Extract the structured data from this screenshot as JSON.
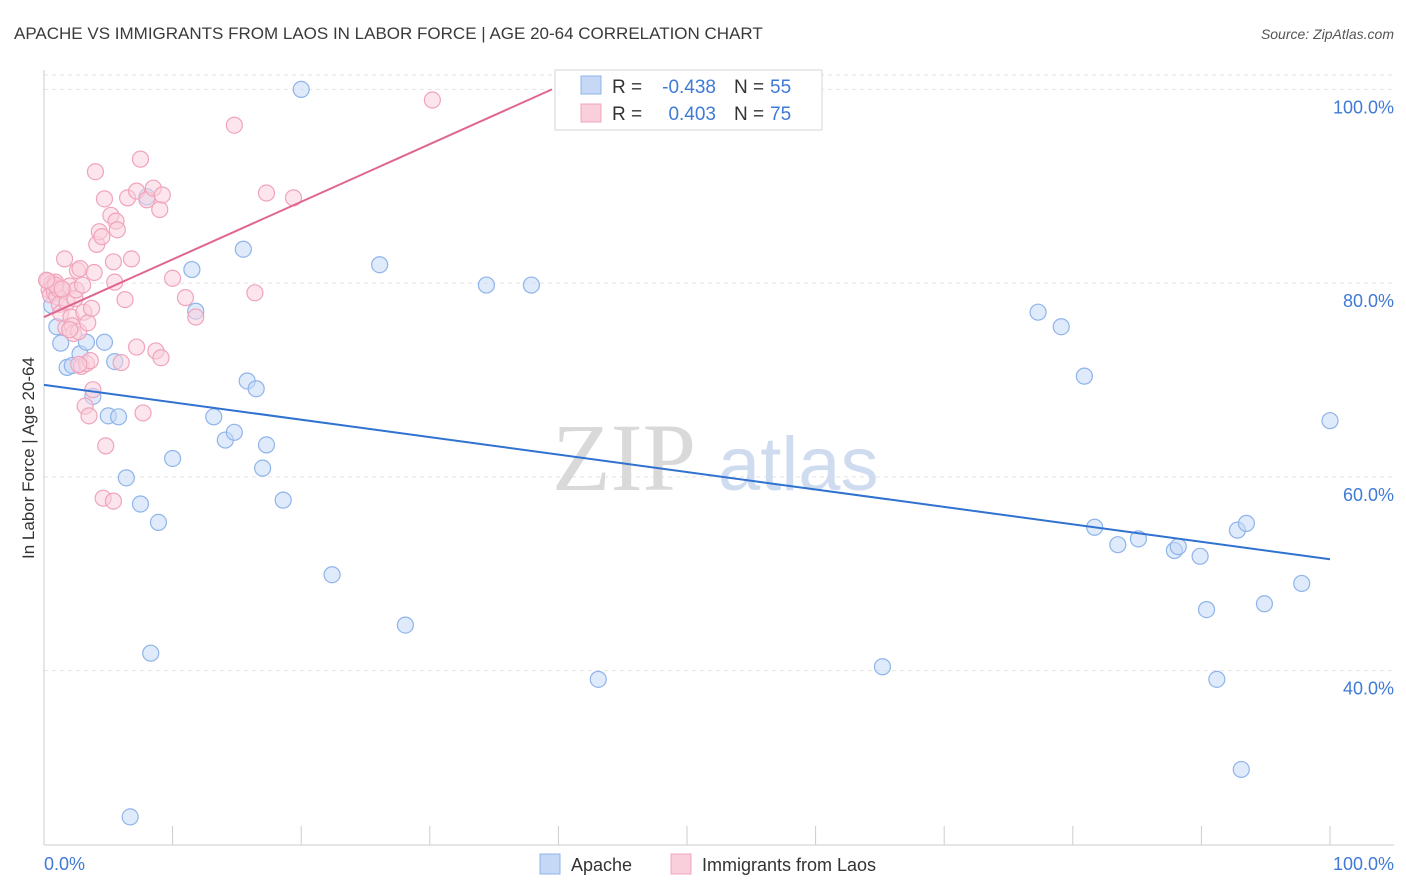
{
  "chart_data": {
    "type": "scatter",
    "title": "APACHE VS IMMIGRANTS FROM LAOS IN LABOR FORCE | AGE 20-64 CORRELATION CHART",
    "source": "Source: ZipAtlas.com",
    "xlabel": "",
    "ylabel": "In Labor Force | Age 20-64",
    "xlim": [
      0,
      100
    ],
    "ylim": [
      22,
      102
    ],
    "x_tick_labels": [
      "0.0%",
      "100.0%"
    ],
    "y_ticks": [
      {
        "value": 40,
        "label": "40.0%"
      },
      {
        "value": 60,
        "label": "60.0%"
      },
      {
        "value": 80,
        "label": "80.0%"
      },
      {
        "value": 100,
        "label": "100.0%"
      }
    ],
    "watermark": {
      "zip": "ZIP",
      "atlas": "atlas"
    },
    "legend": {
      "r_label": "R =",
      "n_label": "N =",
      "entries": [
        {
          "r": "-0.438",
          "n": "55"
        },
        {
          "r": "0.403",
          "n": "75"
        }
      ]
    },
    "series": [
      {
        "name": "Apache",
        "color": "#8fb4ea",
        "fill": "#c5d9f6",
        "line_color": "#2f72d0",
        "trend": {
          "x": [
            0,
            100
          ],
          "y": [
            69.5,
            51.5
          ]
        },
        "points": [
          [
            1.0,
            75.5
          ],
          [
            1.3,
            73.8
          ],
          [
            1.8,
            71.3
          ],
          [
            2.2,
            71.5
          ],
          [
            2.8,
            72.7
          ],
          [
            3.3,
            73.9
          ],
          [
            3.8,
            68.3
          ],
          [
            4.7,
            73.9
          ],
          [
            5.0,
            66.3
          ],
          [
            5.5,
            71.9
          ],
          [
            5.8,
            66.2
          ],
          [
            6.4,
            59.9
          ],
          [
            7.5,
            57.2
          ],
          [
            8.0,
            88.9
          ],
          [
            8.3,
            41.8
          ],
          [
            8.9,
            55.3
          ],
          [
            10.0,
            61.9
          ],
          [
            11.5,
            81.4
          ],
          [
            11.8,
            77.1
          ],
          [
            13.2,
            66.2
          ],
          [
            14.1,
            63.8
          ],
          [
            14.8,
            64.6
          ],
          [
            15.5,
            83.5
          ],
          [
            15.8,
            69.9
          ],
          [
            16.5,
            69.1
          ],
          [
            17.0,
            60.9
          ],
          [
            17.3,
            63.3
          ],
          [
            18.6,
            57.6
          ],
          [
            20.0,
            100.0
          ],
          [
            22.4,
            49.9
          ],
          [
            26.1,
            81.9
          ],
          [
            28.1,
            44.7
          ],
          [
            34.4,
            79.8
          ],
          [
            37.9,
            79.8
          ],
          [
            43.1,
            39.1
          ],
          [
            65.2,
            40.4
          ],
          [
            77.3,
            77.0
          ],
          [
            79.1,
            75.5
          ],
          [
            80.9,
            70.4
          ],
          [
            81.7,
            54.8
          ],
          [
            83.5,
            53.0
          ],
          [
            85.1,
            53.6
          ],
          [
            87.9,
            52.4
          ],
          [
            88.2,
            52.8
          ],
          [
            89.9,
            51.8
          ],
          [
            90.4,
            46.3
          ],
          [
            91.2,
            39.1
          ],
          [
            92.8,
            54.5
          ],
          [
            93.1,
            29.8
          ],
          [
            93.5,
            55.2
          ],
          [
            94.9,
            46.9
          ],
          [
            97.8,
            49.0
          ],
          [
            100.0,
            65.8
          ],
          [
            6.7,
            24.9
          ],
          [
            0.6,
            77.7
          ]
        ]
      },
      {
        "name": "Immigrants from Laos",
        "color": "#f0a4bb",
        "fill": "#f9cfdc",
        "line_color": "#e06690",
        "trend": {
          "x": [
            0,
            39.5
          ],
          "y": [
            76.5,
            100.0
          ]
        },
        "points": [
          [
            0.3,
            80.2
          ],
          [
            0.4,
            79.3
          ],
          [
            0.5,
            78.8
          ],
          [
            0.6,
            80.0
          ],
          [
            0.7,
            79.6
          ],
          [
            0.8,
            79.1
          ],
          [
            0.9,
            80.1
          ],
          [
            1.0,
            78.6
          ],
          [
            1.1,
            79.4
          ],
          [
            1.2,
            77.8
          ],
          [
            1.3,
            76.9
          ],
          [
            1.5,
            79.2
          ],
          [
            1.6,
            82.5
          ],
          [
            1.7,
            75.4
          ],
          [
            1.8,
            78.0
          ],
          [
            2.0,
            79.7
          ],
          [
            2.1,
            76.5
          ],
          [
            2.2,
            75.6
          ],
          [
            2.3,
            74.8
          ],
          [
            2.4,
            78.4
          ],
          [
            2.5,
            79.3
          ],
          [
            2.6,
            81.3
          ],
          [
            2.7,
            75.0
          ],
          [
            2.8,
            81.5
          ],
          [
            2.9,
            71.4
          ],
          [
            3.0,
            79.8
          ],
          [
            3.1,
            77.0
          ],
          [
            3.2,
            67.3
          ],
          [
            3.3,
            71.7
          ],
          [
            3.4,
            75.9
          ],
          [
            3.5,
            66.3
          ],
          [
            3.6,
            72.0
          ],
          [
            3.7,
            77.4
          ],
          [
            3.8,
            69.0
          ],
          [
            3.9,
            81.1
          ],
          [
            4.0,
            91.5
          ],
          [
            4.1,
            84.0
          ],
          [
            4.3,
            85.3
          ],
          [
            4.5,
            84.8
          ],
          [
            4.6,
            57.8
          ],
          [
            4.7,
            88.7
          ],
          [
            4.8,
            63.2
          ],
          [
            5.2,
            87.0
          ],
          [
            5.4,
            82.2
          ],
          [
            5.5,
            80.1
          ],
          [
            5.6,
            86.4
          ],
          [
            5.7,
            85.5
          ],
          [
            6.0,
            71.8
          ],
          [
            6.3,
            78.3
          ],
          [
            6.5,
            88.8
          ],
          [
            6.8,
            82.5
          ],
          [
            7.2,
            89.5
          ],
          [
            7.5,
            92.8
          ],
          [
            7.7,
            66.6
          ],
          [
            8.0,
            88.6
          ],
          [
            8.5,
            89.8
          ],
          [
            8.7,
            73.0
          ],
          [
            9.0,
            87.6
          ],
          [
            9.1,
            72.3
          ],
          [
            9.2,
            89.1
          ],
          [
            10.0,
            80.5
          ],
          [
            11.0,
            78.5
          ],
          [
            11.8,
            76.5
          ],
          [
            14.8,
            96.3
          ],
          [
            16.4,
            79.0
          ],
          [
            17.3,
            89.3
          ],
          [
            19.4,
            88.8
          ],
          [
            30.2,
            98.9
          ],
          [
            5.4,
            57.5
          ],
          [
            7.2,
            73.4
          ],
          [
            2.0,
            75.2
          ],
          [
            0.9,
            79.8
          ],
          [
            1.4,
            79.4
          ],
          [
            2.7,
            71.6
          ],
          [
            0.2,
            80.3
          ]
        ]
      }
    ]
  }
}
